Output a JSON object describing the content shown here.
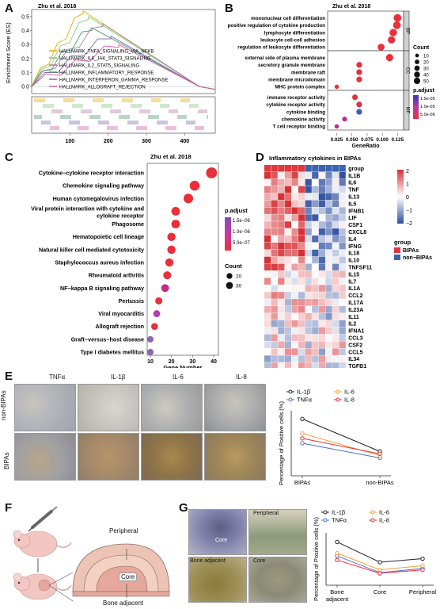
{
  "panels": {
    "A": "A",
    "B": "B",
    "C": "C",
    "D": "D",
    "E": "E",
    "F": "F",
    "G": "G"
  },
  "panel_A": {
    "title": "Zhu et al. 2018",
    "ylabel": "Enrichment Score (ES)",
    "yticks": [
      "0.5",
      "0.4",
      "0.3",
      "0.2",
      "0.1",
      "0.0"
    ],
    "xticks": [
      "100",
      "200",
      "300",
      "400"
    ],
    "legend": [
      {
        "label": "HALLMARK_TNFA_SIGNALING_VIA_NFKB",
        "color": "#e6ab02"
      },
      {
        "label": "HALLMARK_IL6_JAK_STAT3_SIGNALING",
        "color": "#7fc97f"
      },
      {
        "label": "HALLMARK_IL2_STAT5_SIGNALING",
        "color": "#b07aa1"
      },
      {
        "label": "HALLMARK_INFLAMMATORY_RESPONSE",
        "color": "#4e9a6a"
      },
      {
        "label": "HALLMARK_INTERFERON_GAMMA_RESPONSE",
        "color": "#7b6bb0"
      },
      {
        "label": "HALLMARK_ALLOGRAFT_REJECTION",
        "color": "#d65aa8"
      }
    ]
  },
  "chart_data": [
    {
      "id": "B",
      "type": "scatter",
      "title": "Zhu et al. 2018",
      "xlabel": "GeneRatio",
      "xticks": [
        "0.025",
        "0.050",
        "0.075",
        "0.100",
        "0.125"
      ],
      "xlim": [
        0.01,
        0.135
      ],
      "groups": [
        {
          "name": "BP",
          "terms": [
            {
              "label": "mononuclear cell differentiation",
              "x": 0.125,
              "count": 45,
              "color": "#e8303a"
            },
            {
              "label": "positive regulation of cytokine production",
              "x": 0.124,
              "count": 44,
              "color": "#e8303a"
            },
            {
              "label": "lymphocyte differentiation",
              "x": 0.118,
              "count": 40,
              "color": "#e8303a"
            },
            {
              "label": "leukocyte cell-cell adhesion",
              "x": 0.115,
              "count": 38,
              "color": "#e8303a"
            },
            {
              "label": "regulation of leukocyte differentiation",
              "x": 0.098,
              "count": 32,
              "color": "#e8303a"
            }
          ]
        },
        {
          "name": "CC",
          "terms": [
            {
              "label": "external side of plasma membrane",
              "x": 0.112,
              "count": 38,
              "color": "#e8303a"
            },
            {
              "label": "secretory granule membrane",
              "x": 0.062,
              "count": 20,
              "color": "#e8303a"
            },
            {
              "label": "membrane raft",
              "x": 0.062,
              "count": 20,
              "color": "#e8303a"
            },
            {
              "label": "membrane microdomain",
              "x": 0.062,
              "count": 20,
              "color": "#e8303a"
            },
            {
              "label": "MHC protein complex",
              "x": 0.025,
              "count": 8,
              "color": "#e8303a"
            }
          ]
        },
        {
          "name": "MF",
          "terms": [
            {
              "label": "immune receptor activity",
              "x": 0.055,
              "count": 18,
              "color": "#e8303a"
            },
            {
              "label": "cytokine receptor activity",
              "x": 0.062,
              "count": 20,
              "color": "#d2354f"
            },
            {
              "label": "cytokine binding",
              "x": 0.062,
              "count": 20,
              "color": "#3a5fc4"
            },
            {
              "label": "chemokine activity",
              "x": 0.038,
              "count": 12,
              "color": "#c02c8a"
            },
            {
              "label": "T cell receptor binding",
              "x": 0.025,
              "count": 8,
              "color": "#c02c8a"
            }
          ]
        }
      ],
      "count_legend": {
        "title": "Count",
        "values": [
          10,
          20,
          30,
          40,
          50
        ]
      },
      "padj_legend": {
        "title": "p.adjust",
        "ticks": [
          "1.5e-05",
          "1.0e-05",
          "5.0e-06"
        ]
      }
    },
    {
      "id": "C",
      "type": "scatter",
      "title": "Zhu et al. 2018",
      "xlabel": "Gene Number",
      "xticks": [
        "10",
        "20",
        "30",
        "40"
      ],
      "xlim": [
        10,
        40
      ],
      "terms": [
        {
          "label": "Cytokine−cytokine receptor interaction",
          "x": 39,
          "count": 39,
          "color": "#e8303a"
        },
        {
          "label": "Chemokine signaling pathway",
          "x": 31,
          "count": 31,
          "color": "#e8303a"
        },
        {
          "label": "Human cytomegalovirus infection",
          "x": 28,
          "count": 28,
          "color": "#e8303a"
        },
        {
          "label": "Viral protein interaction with cytokine and cytokine receptor",
          "x": 22,
          "count": 22,
          "color": "#e8303a"
        },
        {
          "label": "Phagosome",
          "x": 22,
          "count": 22,
          "color": "#e8303a"
        },
        {
          "label": "Hematopoietic cell lineage",
          "x": 20,
          "count": 20,
          "color": "#e8303a"
        },
        {
          "label": "Natural killer cell mediated cytotoxicity",
          "x": 20,
          "count": 20,
          "color": "#e8303a"
        },
        {
          "label": "Staphylococcus aureus infection",
          "x": 19,
          "count": 19,
          "color": "#e8303a"
        },
        {
          "label": "Rheumatoid arthritis",
          "x": 18,
          "count": 18,
          "color": "#e8303a"
        },
        {
          "label": "NF−kappa B signaling pathway",
          "x": 17,
          "count": 17,
          "color": "#c02c8a"
        },
        {
          "label": "Pertussis",
          "x": 14,
          "count": 14,
          "color": "#e8303a"
        },
        {
          "label": "Viral myocarditis",
          "x": 13,
          "count": 13,
          "color": "#b040b0"
        },
        {
          "label": "Allograft rejection",
          "x": 12,
          "count": 12,
          "color": "#e8303a"
        },
        {
          "label": "Graft−versus−host disease",
          "x": 10,
          "count": 10,
          "color": "#8a64b8"
        },
        {
          "label": "Type I diabetes mellitus",
          "x": 10,
          "count": 10,
          "color": "#8a64b8"
        }
      ],
      "padj_legend": {
        "title": "p.adjust",
        "ticks": [
          "1.5e−06",
          "1.0e−06",
          "5.0e−07"
        ]
      },
      "count_legend": {
        "title": "Count",
        "values": [
          20,
          30
        ]
      }
    },
    {
      "id": "D",
      "type": "heatmap",
      "title": "Inflammatory cytokines in BIPAs",
      "genes": [
        "group",
        "IL1B",
        "IL6",
        "TNF",
        "IL13",
        "IL5",
        "IFNB1",
        "LIF",
        "CSF1",
        "CXCL8",
        "IL4",
        "IFNG",
        "IL18",
        "IL10",
        "TNFSF11",
        "IL15",
        "IL7",
        "IL1A",
        "CCL2",
        "IL17A",
        "IL23A",
        "IL11",
        "IL2",
        "IFNA1",
        "CCL3",
        "CSF2",
        "CCL5",
        "IL34",
        "TGFB1"
      ],
      "scale_ticks": [
        "2",
        "1",
        "0",
        "−1",
        "−2"
      ],
      "legend": {
        "title": "group",
        "items": [
          {
            "label": "BIPAs",
            "color": "#e0383e"
          },
          {
            "label": "non−BIPAs",
            "color": "#3a64b0"
          }
        ]
      }
    },
    {
      "id": "E",
      "type": "line",
      "ylabel": "Percentage of Positive cells (%)",
      "categories": [
        "BIPAs",
        "non-BIPAs"
      ],
      "series": [
        {
          "name": "IL-1β",
          "color": "#222222",
          "values": [
            90,
            50
          ]
        },
        {
          "name": "TNFα",
          "color": "#4a6fd0",
          "values": [
            60,
            42
          ]
        },
        {
          "name": "IL-6",
          "color": "#f5a030",
          "values": [
            72,
            45
          ]
        },
        {
          "name": "IL-8",
          "color": "#e8303a",
          "values": [
            66,
            47
          ]
        }
      ]
    },
    {
      "id": "G",
      "type": "line",
      "ylabel": "Percentage of Positive cells (%)",
      "categories": [
        "Bone adjacent",
        "Core",
        "Peripheral"
      ],
      "series": [
        {
          "name": "IL-1β",
          "color": "#222222",
          "values": [
            82,
            53,
            58
          ]
        },
        {
          "name": "TNFα",
          "color": "#4a6fd0",
          "values": [
            62,
            38,
            44
          ]
        },
        {
          "name": "IL-6",
          "color": "#f5a030",
          "values": [
            66,
            42,
            48
          ]
        },
        {
          "name": "IL-8",
          "color": "#e8303a",
          "values": [
            56,
            37,
            42
          ]
        }
      ]
    }
  ],
  "panel_E": {
    "col_labels": [
      "TNFα",
      "IL-1β",
      "IL-6",
      "IL-8"
    ],
    "row_labels": [
      "non-BIPAs",
      "BIPAs"
    ]
  },
  "panel_F": {
    "labels": {
      "peripheral": "Peripheral",
      "core": "Core",
      "bone": "Bone adjacent"
    }
  },
  "panel_G": {
    "labels": {
      "core": "Core",
      "peripheral": "Peripheral",
      "bone": "Bone adjacent",
      "core2": "Core"
    }
  }
}
